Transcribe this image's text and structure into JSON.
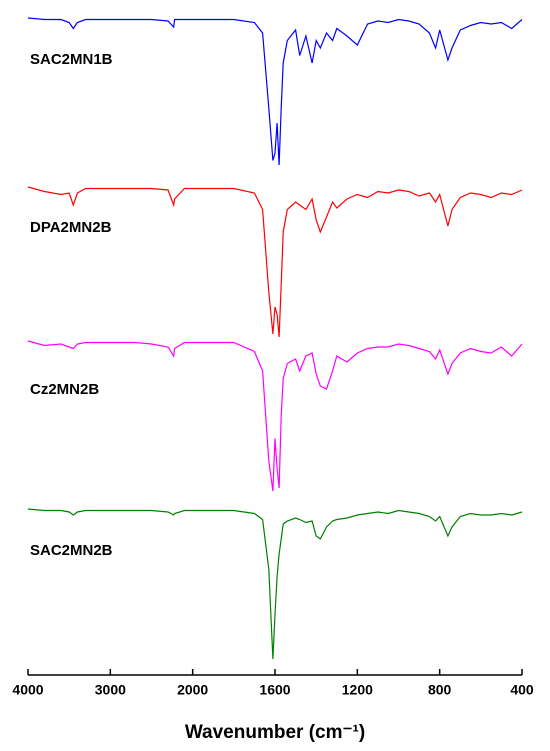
{
  "chart_data": {
    "type": "line",
    "xlabel": "Wavenumber (cm⁻¹)",
    "xlim": [
      4000,
      400
    ],
    "xticks": [
      4000,
      3000,
      2000,
      1600,
      1200,
      800,
      400
    ],
    "x": [
      4000,
      3800,
      3600,
      3500,
      3450,
      3400,
      3300,
      3100,
      2900,
      2700,
      2500,
      2300,
      2230,
      2220,
      2100,
      2000,
      1900,
      1800,
      1700,
      1660,
      1630,
      1610,
      1600,
      1590,
      1580,
      1570,
      1560,
      1540,
      1500,
      1480,
      1450,
      1420,
      1400,
      1380,
      1350,
      1320,
      1300,
      1250,
      1200,
      1150,
      1100,
      1050,
      1000,
      950,
      900,
      850,
      820,
      800,
      760,
      740,
      700,
      650,
      600,
      550,
      500,
      450,
      400
    ],
    "series": [
      {
        "name": "SAC2MN1B",
        "color": "#0000ff",
        "values": [
          100,
          99,
          99,
          97,
          93,
          97,
          99,
          99,
          99,
          99,
          99,
          98,
          94,
          99,
          99,
          99,
          99,
          99,
          97,
          90,
          40,
          5,
          10,
          30,
          2,
          40,
          70,
          85,
          92,
          75,
          88,
          70,
          85,
          80,
          90,
          85,
          93,
          88,
          82,
          96,
          98,
          97,
          99,
          98,
          96,
          90,
          80,
          92,
          72,
          80,
          92,
          95,
          97,
          96,
          97,
          93,
          99
        ]
      },
      {
        "name": "DPA2MN2B",
        "color": "#ff0000",
        "values": [
          100,
          97,
          95,
          96,
          88,
          96,
          99,
          99,
          99,
          99,
          99,
          98,
          88,
          92,
          99,
          99,
          99,
          99,
          96,
          85,
          30,
          2,
          20,
          15,
          0,
          35,
          70,
          85,
          90,
          88,
          85,
          92,
          78,
          70,
          80,
          90,
          86,
          92,
          95,
          93,
          97,
          96,
          98,
          97,
          94,
          96,
          90,
          95,
          74,
          85,
          93,
          96,
          95,
          93,
          96,
          95,
          98
        ]
      },
      {
        "name": "Cz2MN2B",
        "color": "#ff00ff",
        "values": [
          100,
          97,
          98,
          96,
          95,
          98,
          99,
          99,
          99,
          99,
          98,
          96,
          90,
          95,
          99,
          99,
          99,
          99,
          93,
          80,
          20,
          0,
          35,
          15,
          2,
          50,
          75,
          85,
          88,
          80,
          90,
          92,
          78,
          70,
          68,
          80,
          90,
          86,
          92,
          95,
          96,
          96,
          98,
          97,
          95,
          93,
          88,
          94,
          78,
          85,
          92,
          95,
          93,
          92,
          96,
          90,
          98
        ]
      },
      {
        "name": "SAC2MN2B",
        "color": "#008000",
        "values": [
          100,
          99,
          99,
          98,
          96,
          98,
          99,
          99,
          99,
          99,
          99,
          98,
          96,
          97,
          99,
          99,
          99,
          99,
          97,
          93,
          60,
          0,
          30,
          55,
          70,
          80,
          90,
          92,
          94,
          93,
          91,
          92,
          82,
          80,
          88,
          92,
          93,
          94,
          96,
          97,
          98,
          97,
          99,
          98,
          97,
          95,
          92,
          95,
          82,
          88,
          95,
          97,
          96,
          96,
          97,
          96,
          98
        ]
      }
    ]
  }
}
